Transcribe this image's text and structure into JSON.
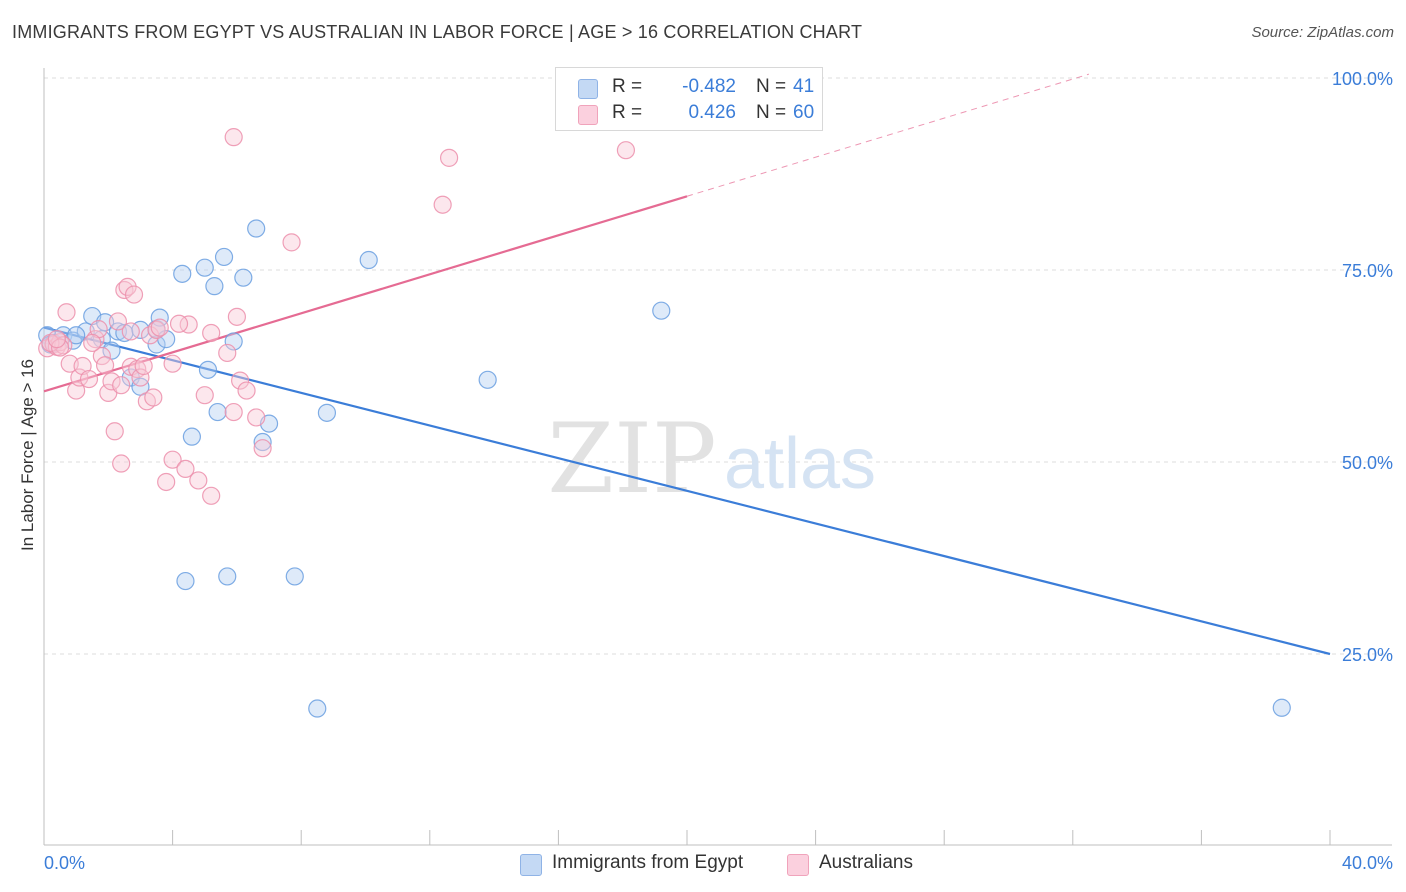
{
  "title": "IMMIGRANTS FROM EGYPT VS AUSTRALIAN IN LABOR FORCE | AGE > 16 CORRELATION CHART",
  "source": "Source: ZipAtlas.com",
  "watermark": {
    "zip": "ZIP",
    "atlas": "atlas"
  },
  "legend": {
    "rows": [
      {
        "r_label": "R =",
        "r_value": "-0.482",
        "n_label": "N =",
        "n_value": "41",
        "color": "#a9c6ef"
      },
      {
        "r_label": "R =",
        "r_value": "0.426",
        "n_label": "N =",
        "n_value": "60",
        "color": "#f7b9cc"
      }
    ]
  },
  "chart_data": {
    "type": "scatter",
    "title": "IMMIGRANTS FROM EGYPT VS AUSTRALIAN IN LABOR FORCE | AGE > 16 CORRELATION CHART",
    "xlabel": "",
    "ylabel": "In Labor Force | Age > 16",
    "xlim": [
      0,
      40
    ],
    "ylim": [
      0,
      105
    ],
    "x_tick_labels": [
      "0.0%",
      "40.0%"
    ],
    "y_ticks": [
      25,
      50,
      75,
      100
    ],
    "y_tick_labels": [
      "25.0%",
      "50.0%",
      "75.0%",
      "100.0%"
    ],
    "grid": true,
    "legend_position": "bottom",
    "series": [
      {
        "name": "Immigrants from Egypt",
        "color": "#6a9fe0",
        "fill": "#b6d0f2",
        "trend": {
          "x": [
            0,
            40
          ],
          "y": [
            67.5,
            25.0
          ],
          "color": "#3b7dd8"
        },
        "points": [
          [
            0.1,
            66.5
          ],
          [
            0.3,
            65.5
          ],
          [
            0.6,
            66.5
          ],
          [
            0.9,
            65.8
          ],
          [
            1.3,
            67.0
          ],
          [
            1.5,
            69.0
          ],
          [
            1.8,
            66.0
          ],
          [
            1.9,
            68.2
          ],
          [
            2.1,
            64.5
          ],
          [
            2.3,
            67.0
          ],
          [
            2.5,
            66.8
          ],
          [
            2.7,
            61.0
          ],
          [
            3.0,
            67.2
          ],
          [
            3.0,
            59.8
          ],
          [
            3.5,
            67.3
          ],
          [
            3.5,
            65.3
          ],
          [
            3.6,
            68.8
          ],
          [
            3.8,
            66.0
          ],
          [
            4.3,
            74.5
          ],
          [
            4.6,
            53.3
          ],
          [
            5.0,
            75.3
          ],
          [
            5.1,
            62.0
          ],
          [
            5.3,
            72.9
          ],
          [
            5.4,
            56.5
          ],
          [
            5.6,
            76.7
          ],
          [
            5.9,
            65.7
          ],
          [
            6.2,
            74.0
          ],
          [
            6.6,
            80.4
          ],
          [
            6.8,
            52.6
          ],
          [
            7.0,
            55.0
          ],
          [
            8.8,
            56.4
          ],
          [
            10.1,
            76.3
          ],
          [
            13.8,
            60.7
          ],
          [
            19.2,
            69.7
          ],
          [
            4.4,
            34.5
          ],
          [
            5.7,
            35.1
          ],
          [
            7.8,
            35.1
          ],
          [
            8.5,
            17.9
          ],
          [
            38.5,
            18.0
          ],
          [
            0.2,
            65.3
          ],
          [
            1.0,
            66.5
          ]
        ]
      },
      {
        "name": "Australians",
        "color": "#ec8fac",
        "fill": "#f9c9d8",
        "trend": {
          "x": [
            0,
            20
          ],
          "y": [
            59.2,
            84.6
          ],
          "color": "#e56b93"
        },
        "trend_extension": {
          "x": [
            20,
            32.5
          ],
          "y": [
            84.6,
            100.5
          ]
        },
        "points": [
          [
            0.1,
            64.8
          ],
          [
            0.3,
            65.3
          ],
          [
            0.4,
            65.0
          ],
          [
            0.5,
            65.6
          ],
          [
            0.6,
            65.2
          ],
          [
            0.7,
            69.5
          ],
          [
            0.8,
            62.8
          ],
          [
            1.0,
            59.3
          ],
          [
            1.1,
            61.0
          ],
          [
            1.2,
            62.5
          ],
          [
            1.4,
            60.8
          ],
          [
            1.6,
            66.0
          ],
          [
            1.7,
            67.3
          ],
          [
            1.8,
            63.8
          ],
          [
            1.9,
            62.6
          ],
          [
            2.0,
            59.0
          ],
          [
            2.1,
            60.5
          ],
          [
            2.2,
            54.0
          ],
          [
            2.3,
            68.3
          ],
          [
            2.4,
            60.0
          ],
          [
            2.4,
            49.8
          ],
          [
            2.5,
            72.4
          ],
          [
            2.6,
            72.8
          ],
          [
            2.7,
            62.4
          ],
          [
            2.8,
            71.8
          ],
          [
            2.9,
            62.1
          ],
          [
            3.0,
            61.0
          ],
          [
            3.1,
            62.5
          ],
          [
            3.2,
            57.9
          ],
          [
            3.3,
            66.5
          ],
          [
            3.4,
            58.4
          ],
          [
            3.5,
            67.2
          ],
          [
            3.6,
            67.5
          ],
          [
            3.8,
            47.4
          ],
          [
            4.0,
            50.3
          ],
          [
            4.0,
            62.8
          ],
          [
            4.4,
            49.1
          ],
          [
            4.5,
            67.9
          ],
          [
            4.8,
            47.6
          ],
          [
            5.0,
            58.7
          ],
          [
            5.2,
            45.6
          ],
          [
            5.2,
            66.8
          ],
          [
            5.7,
            64.2
          ],
          [
            5.9,
            56.5
          ],
          [
            6.0,
            68.9
          ],
          [
            6.1,
            60.6
          ],
          [
            6.3,
            59.3
          ],
          [
            6.6,
            55.8
          ],
          [
            6.8,
            51.8
          ],
          [
            7.7,
            78.6
          ],
          [
            5.9,
            92.3
          ],
          [
            12.4,
            83.5
          ],
          [
            12.6,
            89.6
          ],
          [
            18.1,
            90.6
          ],
          [
            0.2,
            65.5
          ],
          [
            0.5,
            64.9
          ],
          [
            1.5,
            65.5
          ],
          [
            0.4,
            66.0
          ],
          [
            2.7,
            67.0
          ],
          [
            4.2,
            68.0
          ]
        ]
      }
    ]
  }
}
